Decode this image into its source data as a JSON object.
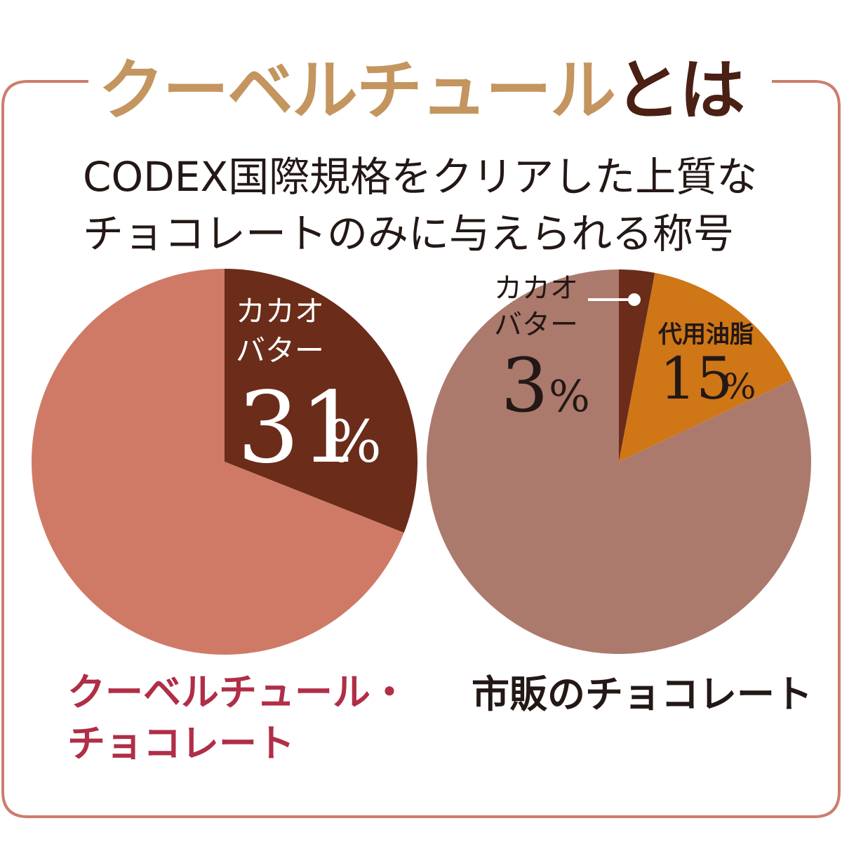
{
  "title": {
    "part1": "クーベルチュール",
    "part2": "とは"
  },
  "subtitle": {
    "line1": "CODEX国際規格をクリアした上質な",
    "line2": "チョコレートのみに与えられる称号"
  },
  "colors": {
    "frame": "#cc7d6c",
    "title_accent": "#c4955e",
    "title_dark": "#4a2014",
    "cocoa_butter": "#6b2c1a",
    "couverture_rest": "#cf7a66",
    "substitute_fat": "#cf7617",
    "commercial_rest": "#ab7a6c",
    "caption_left": "#b02e47",
    "caption_right": "#231815"
  },
  "chart_data": [
    {
      "type": "pie",
      "slices": [
        {
          "label": "カカオバター",
          "value": 31,
          "color": "#6b2c1a"
        },
        {
          "label": "",
          "value": 69,
          "color": "#cf7a66"
        }
      ],
      "labels": {
        "cocoa_line1": "カカオ",
        "cocoa_line2": "バター",
        "cocoa_value": "31",
        "pct": "%"
      },
      "caption_line1": "クーベルチュール・",
      "caption_line2": "チョコレート"
    },
    {
      "type": "pie",
      "slices": [
        {
          "label": "カカオバター",
          "value": 3,
          "color": "#6b2c1a"
        },
        {
          "label": "代用油脂",
          "value": 15,
          "color": "#cf7617"
        },
        {
          "label": "",
          "value": 82,
          "color": "#ab7a6c"
        }
      ],
      "labels": {
        "cocoa_line1": "カカオ",
        "cocoa_line2": "バター",
        "cocoa_value": "3",
        "sub_name": "代用油脂",
        "sub_value": "15",
        "pct": "%"
      },
      "caption": "市販のチョコレート"
    }
  ]
}
